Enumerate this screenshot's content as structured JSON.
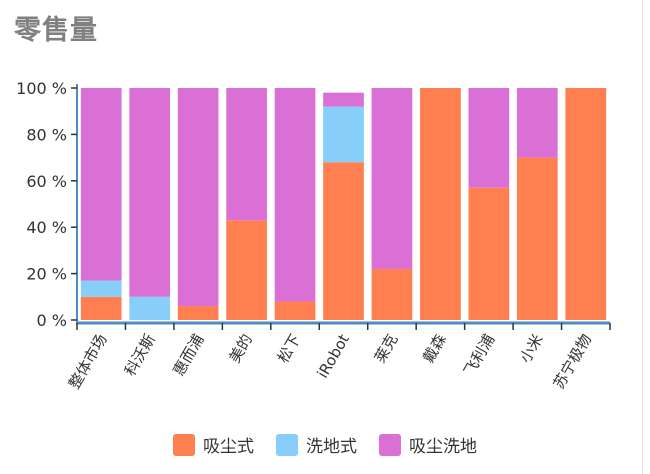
{
  "title": "零售量",
  "chart_data": {
    "type": "bar",
    "stacked": true,
    "title": "零售量",
    "xlabel": "",
    "ylabel": "",
    "ylim": [
      0,
      100
    ],
    "y_ticks": [
      "0 %",
      "20 %",
      "40 %",
      "60 %",
      "80 %",
      "100 %"
    ],
    "y_tick_values": [
      0,
      20,
      40,
      60,
      80,
      100
    ],
    "categories": [
      "整体市场",
      "科沃斯",
      "惠而浦",
      "美的",
      "松下",
      "iRobot",
      "莱克",
      "戴森",
      "飞利浦",
      "小米",
      "苏宁极物"
    ],
    "series": [
      {
        "name": "吸尘式",
        "color": "#ff7f50",
        "values": [
          10,
          0,
          6,
          43,
          8,
          68,
          22,
          100,
          57,
          70,
          100
        ]
      },
      {
        "name": "洗地式",
        "color": "#87cefa",
        "values": [
          7,
          10,
          0,
          0,
          0,
          24,
          0,
          0,
          0,
          0,
          0
        ]
      },
      {
        "name": "吸尘洗地",
        "color": "#da70d6",
        "values": [
          83,
          90,
          94,
          57,
          92,
          6,
          78,
          0,
          43,
          30,
          0
        ]
      }
    ],
    "grid": false,
    "legend_position": "bottom"
  }
}
